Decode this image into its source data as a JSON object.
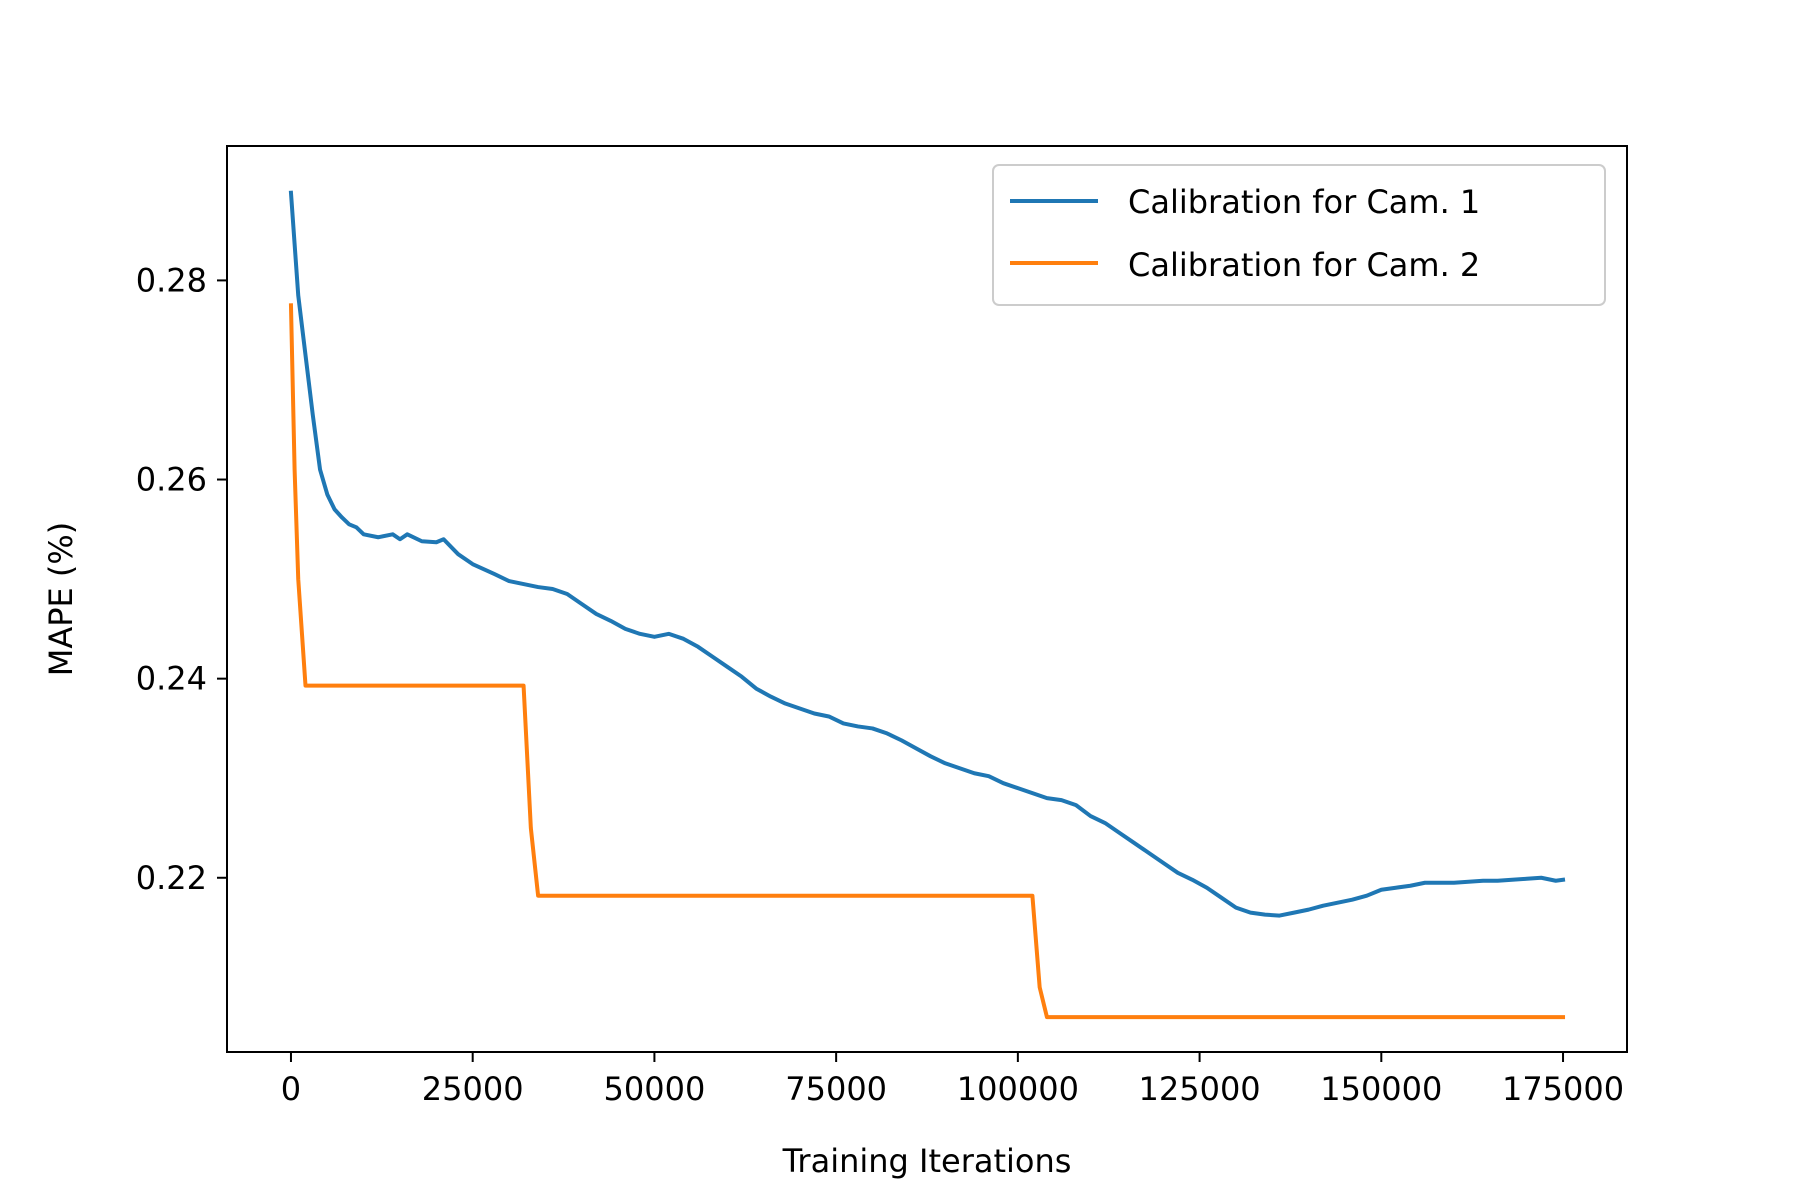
{
  "chart_data": {
    "type": "line",
    "title": "",
    "xlabel": "Training Iterations",
    "ylabel": "MAPE (%)",
    "xlim": [
      -8800,
      183800
    ],
    "ylim": [
      0.2025,
      0.2935
    ],
    "xticks": [
      0,
      25000,
      50000,
      75000,
      100000,
      125000,
      150000,
      175000
    ],
    "xtick_labels": [
      "0",
      "25000",
      "50000",
      "75000",
      "100000",
      "125000",
      "150000",
      "175000"
    ],
    "yticks": [
      0.22,
      0.24,
      0.26,
      0.28
    ],
    "ytick_labels": [
      "0.22",
      "0.24",
      "0.26",
      "0.28"
    ],
    "grid": false,
    "legend_position": "top-right",
    "series": [
      {
        "name": "Calibration for Cam. 1",
        "color": "#1f77b4",
        "x": [
          0,
          1000,
          2000,
          3000,
          4000,
          5000,
          6000,
          7000,
          8000,
          9000,
          10000,
          12000,
          14000,
          15000,
          16000,
          18000,
          20000,
          21000,
          23000,
          25000,
          28000,
          30000,
          32000,
          34000,
          36000,
          38000,
          40000,
          42000,
          44000,
          46000,
          48000,
          50000,
          52000,
          54000,
          56000,
          58000,
          60000,
          62000,
          64000,
          66000,
          68000,
          70000,
          72000,
          74000,
          76000,
          78000,
          80000,
          82000,
          84000,
          86000,
          88000,
          90000,
          92000,
          94000,
          96000,
          98000,
          100000,
          102000,
          104000,
          106000,
          108000,
          110000,
          112000,
          114000,
          116000,
          118000,
          120000,
          122000,
          124000,
          126000,
          128000,
          130000,
          132000,
          134000,
          136000,
          138000,
          140000,
          142000,
          144000,
          146000,
          148000,
          150000,
          152000,
          154000,
          156000,
          158000,
          160000,
          162000,
          164000,
          166000,
          168000,
          170000,
          172000,
          174000,
          175000
        ],
        "y": [
          0.2888,
          0.2785,
          0.2725,
          0.2665,
          0.261,
          0.2585,
          0.257,
          0.2562,
          0.2555,
          0.2552,
          0.2545,
          0.2542,
          0.2545,
          0.254,
          0.2545,
          0.2538,
          0.2537,
          0.254,
          0.2525,
          0.2515,
          0.2505,
          0.2498,
          0.2495,
          0.2492,
          0.249,
          0.2485,
          0.2475,
          0.2465,
          0.2458,
          0.245,
          0.2445,
          0.2442,
          0.2445,
          0.244,
          0.2432,
          0.2422,
          0.2412,
          0.2402,
          0.239,
          0.2382,
          0.2375,
          0.237,
          0.2365,
          0.2362,
          0.2355,
          0.2352,
          0.235,
          0.2345,
          0.2338,
          0.233,
          0.2322,
          0.2315,
          0.231,
          0.2305,
          0.2302,
          0.2295,
          0.229,
          0.2285,
          0.228,
          0.2278,
          0.2273,
          0.2262,
          0.2255,
          0.2245,
          0.2235,
          0.2225,
          0.2215,
          0.2205,
          0.2198,
          0.219,
          0.218,
          0.217,
          0.2165,
          0.2163,
          0.2162,
          0.2165,
          0.2168,
          0.2172,
          0.2175,
          0.2178,
          0.2182,
          0.2188,
          0.219,
          0.2192,
          0.2195,
          0.2195,
          0.2195,
          0.2196,
          0.2197,
          0.2197,
          0.2198,
          0.2199,
          0.22,
          0.2197,
          0.2198
        ]
      },
      {
        "name": "Calibration for Cam. 2",
        "color": "#ff7f0e",
        "x": [
          0,
          500,
          1000,
          2000,
          32000,
          33000,
          34000,
          102000,
          103000,
          104000,
          175000
        ],
        "y": [
          0.2775,
          0.261,
          0.25,
          0.2393,
          0.2393,
          0.225,
          0.2182,
          0.2182,
          0.209,
          0.206,
          0.206
        ]
      }
    ]
  }
}
